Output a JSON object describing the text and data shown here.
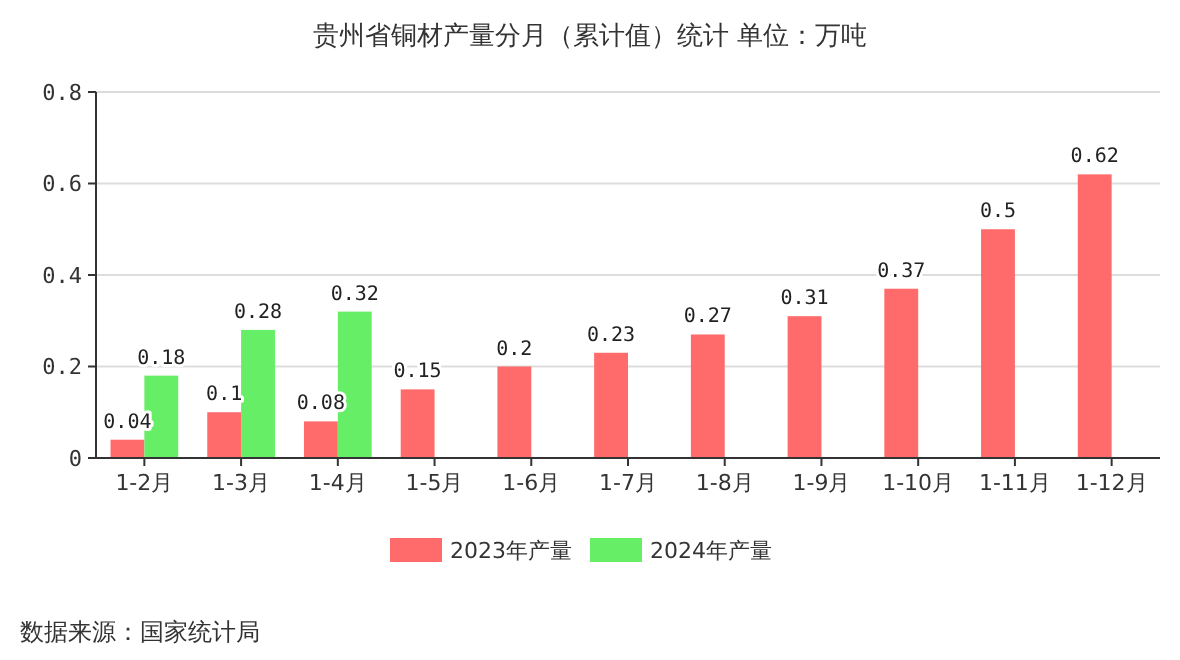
{
  "chart_data": {
    "type": "bar",
    "title": "贵州省铜材产量分月（累计值）统计  单位：万吨",
    "categories": [
      "1-2月",
      "1-3月",
      "1-4月",
      "1-5月",
      "1-6月",
      "1-7月",
      "1-8月",
      "1-9月",
      "1-10月",
      "1-11月",
      "1-12月"
    ],
    "series": [
      {
        "name": "2023年产量",
        "color": "#ff6b6b",
        "values": [
          0.04,
          0.1,
          0.08,
          0.15,
          0.2,
          0.23,
          0.27,
          0.31,
          0.37,
          0.5,
          0.62
        ]
      },
      {
        "name": "2024年产量",
        "color": "#66ee66",
        "values": [
          0.18,
          0.28,
          0.32,
          null,
          null,
          null,
          null,
          null,
          null,
          null,
          null
        ]
      }
    ],
    "ylim": [
      0,
      0.8
    ],
    "yticks": [
      0,
      0.2,
      0.4,
      0.6,
      0.8
    ],
    "grid": "y",
    "legend": "bottom",
    "data_labels": true,
    "annotations": [
      "数据来源：国家统计局"
    ]
  }
}
